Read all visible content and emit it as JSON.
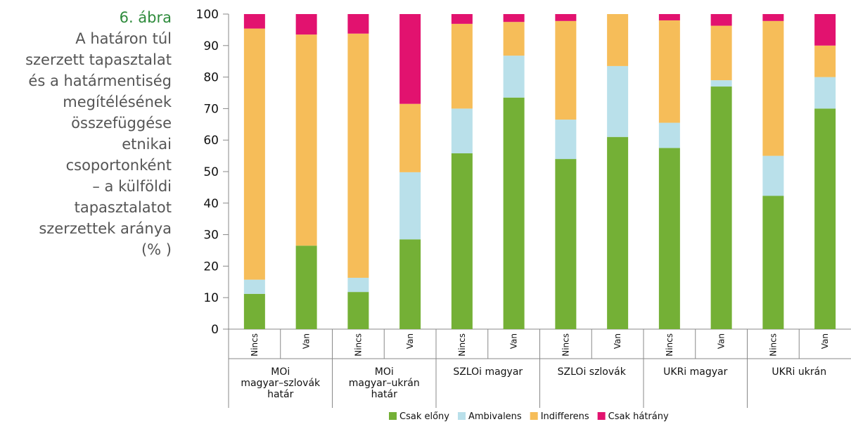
{
  "caption": {
    "number": "6. ábra",
    "title_lines": [
      "A határon túl",
      "szerzett tapasztalat",
      "és a határmentiség",
      "megítélésének",
      "összefüggése",
      "etnikai",
      "csoportonként",
      "– a külföldi",
      "tapasztalatot",
      "szerzettek aránya",
      "(% )"
    ]
  },
  "chart_data": {
    "type": "bar",
    "stacked": true,
    "ylim": [
      0,
      100
    ],
    "yticks": [
      0,
      10,
      20,
      30,
      40,
      50,
      60,
      70,
      80,
      90,
      100
    ],
    "categories": [
      "Nincs",
      "Van",
      "Nincs",
      "Van",
      "Nincs",
      "Van",
      "Nincs",
      "Van",
      "Nincs",
      "Van",
      "Nincs",
      "Van"
    ],
    "groups": [
      [
        "MOi",
        "magyar–szlovák",
        "határ"
      ],
      [
        "MOi",
        "magyar–ukrán",
        "határ"
      ],
      [
        "SZLOi magyar"
      ],
      [
        "SZLOi szlovák"
      ],
      [
        "UKRi magyar"
      ],
      [
        "UKRi ukrán"
      ]
    ],
    "series": [
      {
        "name": "Csak előny",
        "color": "#74b036",
        "values": [
          11.2,
          26.5,
          11.8,
          28.5,
          55.8,
          73.5,
          54.0,
          61.0,
          57.5,
          77.0,
          42.3,
          70.0
        ]
      },
      {
        "name": "Ambivalens",
        "color": "#b9e0ea",
        "values": [
          4.5,
          0,
          4.5,
          21.3,
          14.2,
          13.3,
          12.5,
          22.5,
          8.0,
          2.0,
          12.7,
          10.0
        ]
      },
      {
        "name": "Indifferens",
        "color": "#f6bd59",
        "values": [
          79.7,
          67.0,
          77.5,
          21.7,
          26.9,
          10.7,
          31.3,
          16.5,
          32.5,
          17.3,
          42.8,
          10.0
        ]
      },
      {
        "name": "Csak hátrány",
        "color": "#e2126f",
        "values": [
          4.6,
          6.5,
          6.2,
          28.5,
          3.1,
          2.5,
          2.2,
          0,
          2.0,
          3.7,
          2.2,
          10.0
        ]
      }
    ],
    "legend_position": "bottom",
    "grid": false
  }
}
